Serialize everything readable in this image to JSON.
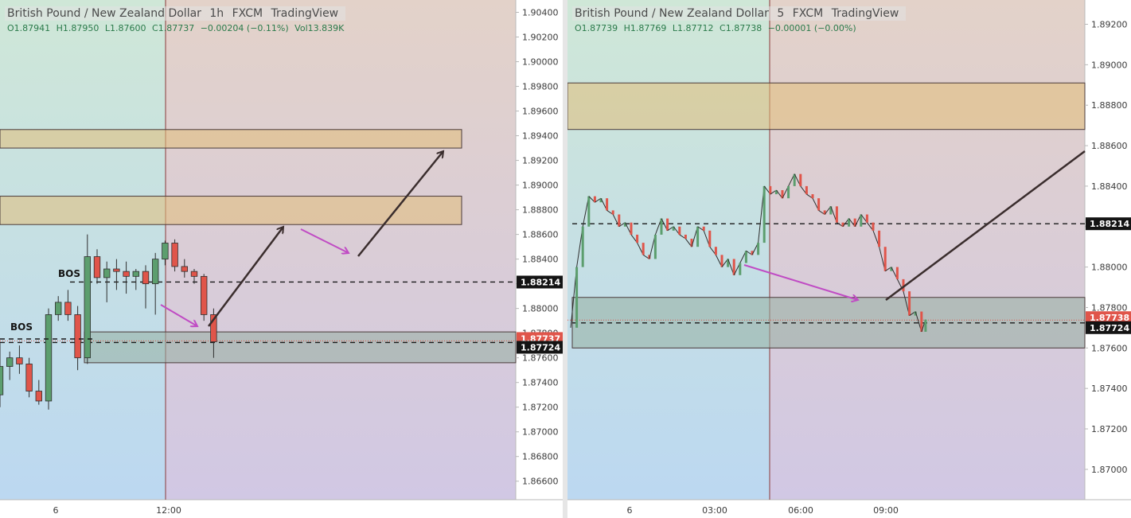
{
  "charts": [
    {
      "id": "left",
      "header": {
        "symbol": "British Pound / New Zealand Dollar",
        "interval": "1h",
        "broker": "FXCM",
        "platform": "TradingView",
        "ohlc": {
          "o": "O1.87941",
          "h": "H1.87950",
          "l": "L1.87600",
          "c": "C1.87737",
          "chg": "−0.00204 (−0.11%)",
          "vol": "Vol13.839K"
        }
      },
      "annotations": {
        "bos_labels": [
          "BOS",
          "BOS"
        ]
      },
      "colors": {
        "up": "#5c9e6e",
        "down": "#e0554a",
        "box_gray": "#c7c8c4",
        "box_upper": "#dcc68a",
        "arrow_dark": "#3a2d2d",
        "arrow_purple": "#c04cc4"
      }
    },
    {
      "id": "right",
      "header": {
        "symbol": "British Pound / New Zealand Dollar",
        "interval": "5",
        "broker": "FXCM",
        "platform": "TradingView",
        "ohlc": {
          "o": "O1.87739",
          "h": "H1.87769",
          "l": "L1.87712",
          "c": "C1.87738",
          "chg": "−0.00001 (−0.00%)",
          "vol": ""
        }
      }
    }
  ],
  "chart_data": [
    {
      "type": "candlestick",
      "title": "British Pound / New Zealand Dollar 1h FXCM",
      "ylim": [
        1.8645,
        1.905
      ],
      "y_ticks": [
        "1.90400",
        "1.90200",
        "1.90000",
        "1.89800",
        "1.89600",
        "1.89400",
        "1.89200",
        "1.89000",
        "1.88800",
        "1.88600",
        "1.88400",
        "1.88200",
        "1.88000",
        "1.87800",
        "1.87600",
        "1.87400",
        "1.87200",
        "1.87000",
        "1.86800",
        "1.86600"
      ],
      "x_ticks": [
        "6",
        "12:00"
      ],
      "price_labels": [
        {
          "value": 1.88214,
          "text": "1.88214",
          "kind": "level"
        },
        {
          "value": 1.87737,
          "text": "1.87737",
          "kind": "last"
        },
        {
          "value": 1.87724,
          "text": "1.87724",
          "kind": "level"
        }
      ],
      "levels": [
        1.88214,
        1.87724
      ],
      "zones": [
        {
          "from": 1.893,
          "to": 1.8945
        },
        {
          "from": 1.8868,
          "to": 1.8891
        },
        {
          "from": 1.8756,
          "to": 1.8781
        }
      ],
      "candles": [
        {
          "o": 1.873,
          "h": 1.8772,
          "l": 1.872,
          "c": 1.8753
        },
        {
          "o": 1.8753,
          "h": 1.8765,
          "l": 1.8742,
          "c": 1.876
        },
        {
          "o": 1.876,
          "h": 1.877,
          "l": 1.8747,
          "c": 1.8755
        },
        {
          "o": 1.8755,
          "h": 1.876,
          "l": 1.8728,
          "c": 1.8733
        },
        {
          "o": 1.8733,
          "h": 1.8742,
          "l": 1.8722,
          "c": 1.8725
        },
        {
          "o": 1.8725,
          "h": 1.88,
          "l": 1.8718,
          "c": 1.8795
        },
        {
          "o": 1.8795,
          "h": 1.881,
          "l": 1.879,
          "c": 1.8805
        },
        {
          "o": 1.8805,
          "h": 1.8815,
          "l": 1.879,
          "c": 1.8795
        },
        {
          "o": 1.8795,
          "h": 1.8802,
          "l": 1.875,
          "c": 1.876
        },
        {
          "o": 1.876,
          "h": 1.886,
          "l": 1.8755,
          "c": 1.8842
        },
        {
          "o": 1.8842,
          "h": 1.8848,
          "l": 1.882,
          "c": 1.8825
        },
        {
          "o": 1.8825,
          "h": 1.8838,
          "l": 1.8805,
          "c": 1.8832
        },
        {
          "o": 1.8832,
          "h": 1.884,
          "l": 1.8815,
          "c": 1.883
        },
        {
          "o": 1.883,
          "h": 1.8838,
          "l": 1.8812,
          "c": 1.8826
        },
        {
          "o": 1.8826,
          "h": 1.8832,
          "l": 1.8815,
          "c": 1.883
        },
        {
          "o": 1.883,
          "h": 1.8835,
          "l": 1.88,
          "c": 1.882
        },
        {
          "o": 1.882,
          "h": 1.8845,
          "l": 1.8795,
          "c": 1.884
        },
        {
          "o": 1.884,
          "h": 1.8855,
          "l": 1.8835,
          "c": 1.8853
        },
        {
          "o": 1.8853,
          "h": 1.8856,
          "l": 1.883,
          "c": 1.8834
        },
        {
          "o": 1.8834,
          "h": 1.884,
          "l": 1.8825,
          "c": 1.883
        },
        {
          "o": 1.883,
          "h": 1.8832,
          "l": 1.882,
          "c": 1.8826
        },
        {
          "o": 1.8826,
          "h": 1.8828,
          "l": 1.879,
          "c": 1.8795
        },
        {
          "o": 1.8795,
          "h": 1.88,
          "l": 1.876,
          "c": 1.8773
        }
      ]
    },
    {
      "type": "candlestick",
      "title": "British Pound / New Zealand Dollar 5 FXCM",
      "ylim": [
        1.8685,
        1.8932
      ],
      "y_ticks": [
        "1.89200",
        "1.89000",
        "1.88800",
        "1.88600",
        "1.88400",
        "1.88200",
        "1.88000",
        "1.87800",
        "1.87600",
        "1.87400",
        "1.87200",
        "1.87000"
      ],
      "x_ticks": [
        "6",
        "03:00",
        "06:00",
        "09:00"
      ],
      "price_labels": [
        {
          "value": 1.88214,
          "text": "1.88214",
          "kind": "level"
        },
        {
          "value": 1.87738,
          "text": "1.87738",
          "kind": "last"
        },
        {
          "value": 1.87724,
          "text": "1.87724",
          "kind": "level"
        }
      ],
      "levels": [
        1.88214,
        1.87724
      ],
      "zones": [
        {
          "from": 1.8868,
          "to": 1.8891
        },
        {
          "from": 1.876,
          "to": 1.8785
        }
      ],
      "path": [
        [
          0,
          1.877
        ],
        [
          3,
          1.88
        ],
        [
          6,
          1.882
        ],
        [
          9,
          1.8835
        ],
        [
          12,
          1.8832
        ],
        [
          15,
          1.8834
        ],
        [
          18,
          1.8828
        ],
        [
          21,
          1.8826
        ],
        [
          24,
          1.882
        ],
        [
          27,
          1.8822
        ],
        [
          30,
          1.8816
        ],
        [
          33,
          1.8812
        ],
        [
          36,
          1.8806
        ],
        [
          39,
          1.8804
        ],
        [
          42,
          1.8816
        ],
        [
          45,
          1.8824
        ],
        [
          48,
          1.8818
        ],
        [
          51,
          1.882
        ],
        [
          54,
          1.8816
        ],
        [
          57,
          1.8814
        ],
        [
          60,
          1.881
        ],
        [
          63,
          1.882
        ],
        [
          66,
          1.8818
        ],
        [
          69,
          1.881
        ],
        [
          72,
          1.8806
        ],
        [
          75,
          1.88
        ],
        [
          78,
          1.8804
        ],
        [
          81,
          1.8796
        ],
        [
          84,
          1.8802
        ],
        [
          87,
          1.8808
        ],
        [
          90,
          1.8806
        ],
        [
          93,
          1.8812
        ],
        [
          96,
          1.884
        ],
        [
          99,
          1.8836
        ],
        [
          102,
          1.8838
        ],
        [
          105,
          1.8834
        ],
        [
          108,
          1.884
        ],
        [
          111,
          1.8846
        ],
        [
          114,
          1.884
        ],
        [
          117,
          1.8836
        ],
        [
          120,
          1.8834
        ],
        [
          123,
          1.8828
        ],
        [
          126,
          1.8826
        ],
        [
          129,
          1.883
        ],
        [
          132,
          1.8822
        ],
        [
          135,
          1.882
        ],
        [
          138,
          1.8824
        ],
        [
          141,
          1.882
        ],
        [
          144,
          1.8826
        ],
        [
          147,
          1.8822
        ],
        [
          150,
          1.8818
        ],
        [
          153,
          1.881
        ],
        [
          156,
          1.8798
        ],
        [
          159,
          1.88
        ],
        [
          162,
          1.8794
        ],
        [
          165,
          1.8788
        ],
        [
          168,
          1.8776
        ],
        [
          171,
          1.8778
        ],
        [
          174,
          1.8768
        ],
        [
          176,
          1.8774
        ]
      ],
      "path_x_range": [
        0,
        180
      ]
    }
  ]
}
